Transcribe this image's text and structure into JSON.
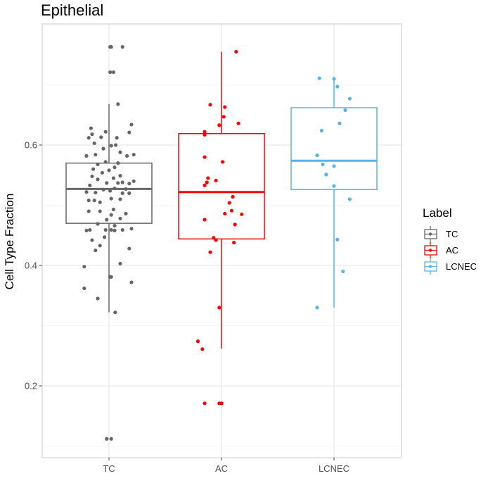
{
  "chart_data": {
    "type": "box",
    "title": "Epithelial",
    "xlabel": "",
    "ylabel": "Cell Type Fraction",
    "categories": [
      "TC",
      "AC",
      "LCNEC"
    ],
    "y_ticks": [
      0.2,
      0.4,
      0.6
    ],
    "y_tick_labels": [
      "0.2",
      "0.4",
      "0.6"
    ],
    "ylim": [
      0.09,
      0.8
    ],
    "grid": true,
    "legend": {
      "title": "Label",
      "position": "right",
      "entries": [
        "TC",
        "AC",
        "LCNEC"
      ]
    },
    "series": [
      {
        "name": "TC",
        "color": "#666666",
        "box": {
          "whisker_low": 0.322,
          "q1": 0.47,
          "median": 0.527,
          "q3": 0.57,
          "whisker_high": 0.668
        },
        "points": [
          [
            0.02,
            0.112
          ],
          [
            -0.02,
            0.112
          ],
          [
            0.055,
            0.322
          ],
          [
            -0.1,
            0.345
          ],
          [
            -0.22,
            0.362
          ],
          [
            0.01,
            0.381
          ],
          [
            0.02,
            0.381
          ],
          [
            0.2,
            0.372
          ],
          [
            -0.22,
            0.398
          ],
          [
            0.1,
            0.403
          ],
          [
            -0.12,
            0.425
          ],
          [
            -0.08,
            0.433
          ],
          [
            -0.15,
            0.442
          ],
          [
            0.18,
            0.428
          ],
          [
            -0.04,
            0.447
          ],
          [
            -0.2,
            0.458
          ],
          [
            -0.17,
            0.459
          ],
          [
            -0.03,
            0.459
          ],
          [
            0.05,
            0.458
          ],
          [
            0.02,
            0.459
          ],
          [
            0.12,
            0.459
          ],
          [
            0.2,
            0.461
          ],
          [
            0.05,
            0.466
          ],
          [
            -0.1,
            0.469
          ],
          [
            -0.02,
            0.476
          ],
          [
            0.1,
            0.478
          ],
          [
            0.02,
            0.484
          ],
          [
            0.15,
            0.486
          ],
          [
            -0.18,
            0.49
          ],
          [
            -0.08,
            0.49
          ],
          [
            0.04,
            0.493
          ],
          [
            -0.18,
            0.508
          ],
          [
            -0.13,
            0.508
          ],
          [
            -0.08,
            0.505
          ],
          [
            0.02,
            0.511
          ],
          [
            0.1,
            0.51
          ],
          [
            0.12,
            0.52
          ],
          [
            0.18,
            0.52
          ],
          [
            -0.2,
            0.522
          ],
          [
            -0.12,
            0.521
          ],
          [
            -0.05,
            0.526
          ],
          [
            0.01,
            0.524
          ],
          [
            0.05,
            0.528
          ],
          [
            0.15,
            0.527
          ],
          [
            -0.17,
            0.533
          ],
          [
            -0.02,
            0.537
          ],
          [
            0.08,
            0.537
          ],
          [
            0.18,
            0.536
          ],
          [
            0.12,
            0.538
          ],
          [
            -0.1,
            0.543
          ],
          [
            0.04,
            0.545
          ],
          [
            0.22,
            0.54
          ],
          [
            -0.15,
            0.548
          ],
          [
            0.1,
            0.549
          ],
          [
            -0.06,
            0.554
          ],
          [
            0.0,
            0.558
          ],
          [
            -0.14,
            0.56
          ],
          [
            0.05,
            0.563
          ],
          [
            -0.1,
            0.568
          ],
          [
            -0.03,
            0.572
          ],
          [
            0.08,
            0.57
          ],
          [
            -0.2,
            0.582
          ],
          [
            0.16,
            0.582
          ],
          [
            -0.12,
            0.584
          ],
          [
            0.22,
            0.584
          ],
          [
            0.1,
            0.588
          ],
          [
            -0.05,
            0.594
          ],
          [
            0.02,
            0.599
          ],
          [
            0.06,
            0.6
          ],
          [
            -0.13,
            0.603
          ],
          [
            0.07,
            0.612
          ],
          [
            -0.18,
            0.612
          ],
          [
            -0.07,
            0.613
          ],
          [
            -0.15,
            0.618
          ],
          [
            -0.03,
            0.622
          ],
          [
            0.18,
            0.621
          ],
          [
            -0.16,
            0.628
          ],
          [
            0.2,
            0.634
          ],
          [
            0.08,
            0.668
          ],
          [
            0.01,
            0.721
          ],
          [
            0.04,
            0.721
          ],
          [
            0.01,
            0.763
          ],
          [
            0.02,
            0.763
          ],
          [
            0.12,
            0.763
          ]
        ]
      },
      {
        "name": "AC",
        "color": "#ff0000",
        "box": {
          "whisker_low": 0.262,
          "q1": 0.444,
          "median": 0.522,
          "q3": 0.619,
          "whisker_high": 0.755
        },
        "points": [
          [
            -0.15,
            0.171
          ],
          [
            -0.02,
            0.171
          ],
          [
            0.0,
            0.171
          ],
          [
            -0.17,
            0.261
          ],
          [
            -0.21,
            0.274
          ],
          [
            -0.02,
            0.33
          ],
          [
            -0.1,
            0.422
          ],
          [
            -0.05,
            0.442
          ],
          [
            0.11,
            0.438
          ],
          [
            -0.07,
            0.446
          ],
          [
            0.12,
            0.468
          ],
          [
            -0.15,
            0.476
          ],
          [
            0.03,
            0.486
          ],
          [
            0.18,
            0.485
          ],
          [
            0.09,
            0.491
          ],
          [
            0.07,
            0.504
          ],
          [
            0.1,
            0.514
          ],
          [
            -0.15,
            0.533
          ],
          [
            -0.13,
            0.538
          ],
          [
            -0.12,
            0.545
          ],
          [
            -0.05,
            0.541
          ],
          [
            0.01,
            0.572
          ],
          [
            -0.15,
            0.58
          ],
          [
            -0.15,
            0.617
          ],
          [
            -0.15,
            0.622
          ],
          [
            -0.02,
            0.633
          ],
          [
            0.15,
            0.636
          ],
          [
            0.02,
            0.647
          ],
          [
            0.03,
            0.663
          ],
          [
            -0.1,
            0.667
          ],
          [
            0.13,
            0.755
          ]
        ]
      },
      {
        "name": "LCNEC",
        "color": "#56b4e9",
        "box": {
          "whisker_low": 0.33,
          "q1": 0.526,
          "median": 0.574,
          "q3": 0.662,
          "whisker_high": 0.711
        },
        "points": [
          [
            -0.15,
            0.33
          ],
          [
            0.08,
            0.39
          ],
          [
            0.03,
            0.443
          ],
          [
            0.14,
            0.51
          ],
          [
            0.0,
            0.532
          ],
          [
            -0.07,
            0.551
          ],
          [
            0.0,
            0.565
          ],
          [
            -0.1,
            0.568
          ],
          [
            -0.15,
            0.583
          ],
          [
            -0.11,
            0.624
          ],
          [
            0.05,
            0.636
          ],
          [
            0.1,
            0.658
          ],
          [
            0.14,
            0.677
          ],
          [
            0.03,
            0.697
          ],
          [
            0.0,
            0.71
          ],
          [
            -0.13,
            0.711
          ]
        ]
      }
    ]
  }
}
